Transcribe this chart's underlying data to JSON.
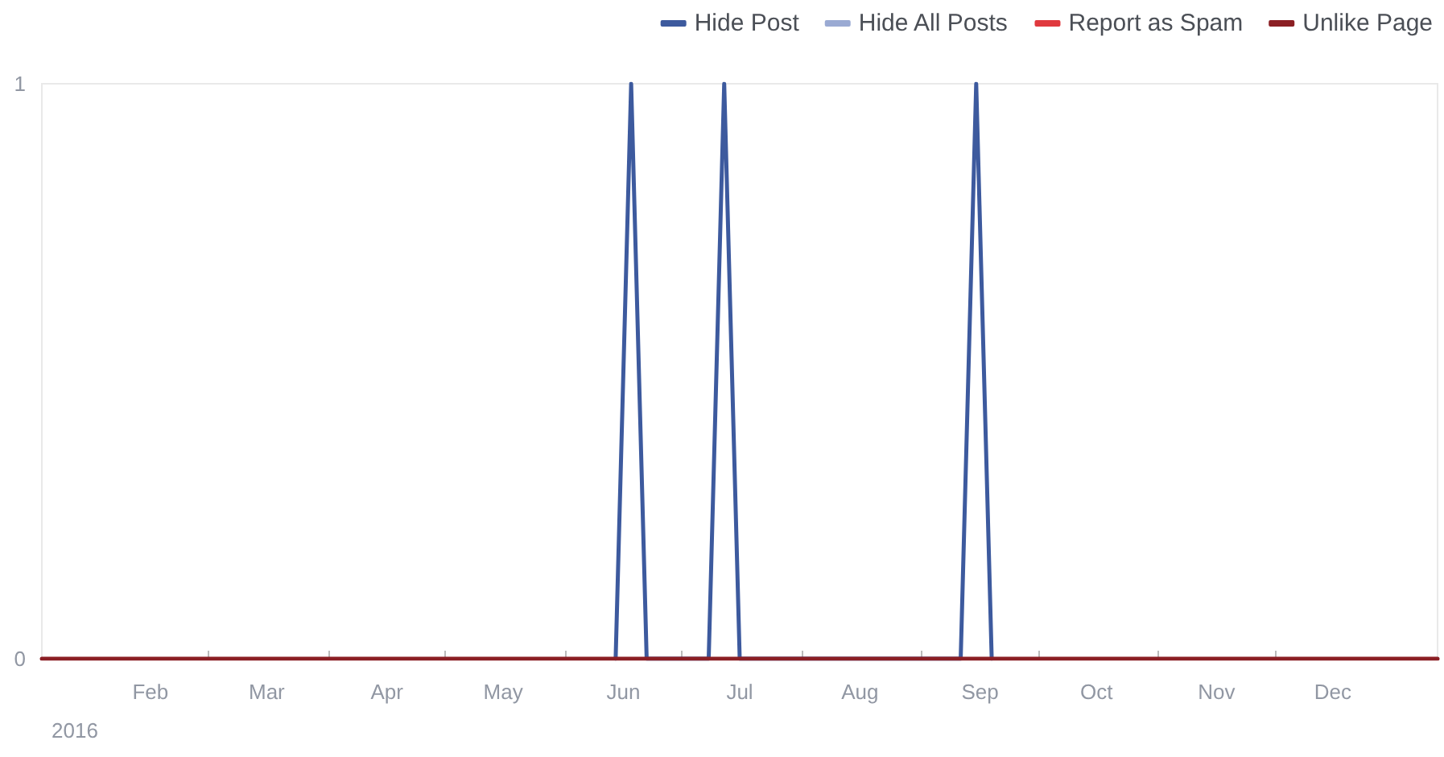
{
  "chart_data": {
    "type": "line",
    "xlim": [
      "2016-01-18",
      "2017-01-12"
    ],
    "xticks": [
      {
        "value": "2016-02-15",
        "label": "Feb"
      },
      {
        "value": "2016-03-01",
        "label": null
      },
      {
        "value": "2016-03-16",
        "label": "Mar"
      },
      {
        "value": "2016-04-01",
        "label": null
      },
      {
        "value": "2016-04-16",
        "label": "Apr"
      },
      {
        "value": "2016-05-01",
        "label": null
      },
      {
        "value": "2016-05-16",
        "label": "May"
      },
      {
        "value": "2016-06-01",
        "label": null
      },
      {
        "value": "2016-06-16",
        "label": "Jun"
      },
      {
        "value": "2016-07-01",
        "label": null
      },
      {
        "value": "2016-07-16",
        "label": "Jul"
      },
      {
        "value": "2016-08-01",
        "label": null
      },
      {
        "value": "2016-08-16",
        "label": "Aug"
      },
      {
        "value": "2016-09-01",
        "label": null
      },
      {
        "value": "2016-09-16",
        "label": "Sep"
      },
      {
        "value": "2016-10-01",
        "label": null
      },
      {
        "value": "2016-10-16",
        "label": "Oct"
      },
      {
        "value": "2016-11-01",
        "label": null
      },
      {
        "value": "2016-11-16",
        "label": "Nov"
      },
      {
        "value": "2016-12-01",
        "label": null
      },
      {
        "value": "2016-12-16",
        "label": "Dec"
      }
    ],
    "annotations": [
      "2016"
    ],
    "ylim": [
      0,
      1
    ],
    "yticks": [
      0,
      1
    ],
    "legend": "top right",
    "marker": "none",
    "series": [
      {
        "name": "Hide Post",
        "color": "#3d5a9e",
        "x": [
          "2016-06-14",
          "2016-06-18",
          "2016-06-22",
          "2016-07-08",
          "2016-07-12",
          "2016-07-16",
          "2016-09-11",
          "2016-09-15",
          "2016-09-19"
        ],
        "values": [
          0,
          1,
          0,
          0,
          1,
          0,
          0,
          1,
          0
        ]
      },
      {
        "name": "Hide All Posts",
        "color": "#9aaad3"
      },
      {
        "name": "Report as Spam",
        "color": "#e0393e"
      },
      {
        "name": "Unlike Page",
        "color": "#8b1f24",
        "x": [
          "2016-01-18",
          "2017-01-12"
        ],
        "values": [
          0,
          0
        ]
      }
    ]
  }
}
